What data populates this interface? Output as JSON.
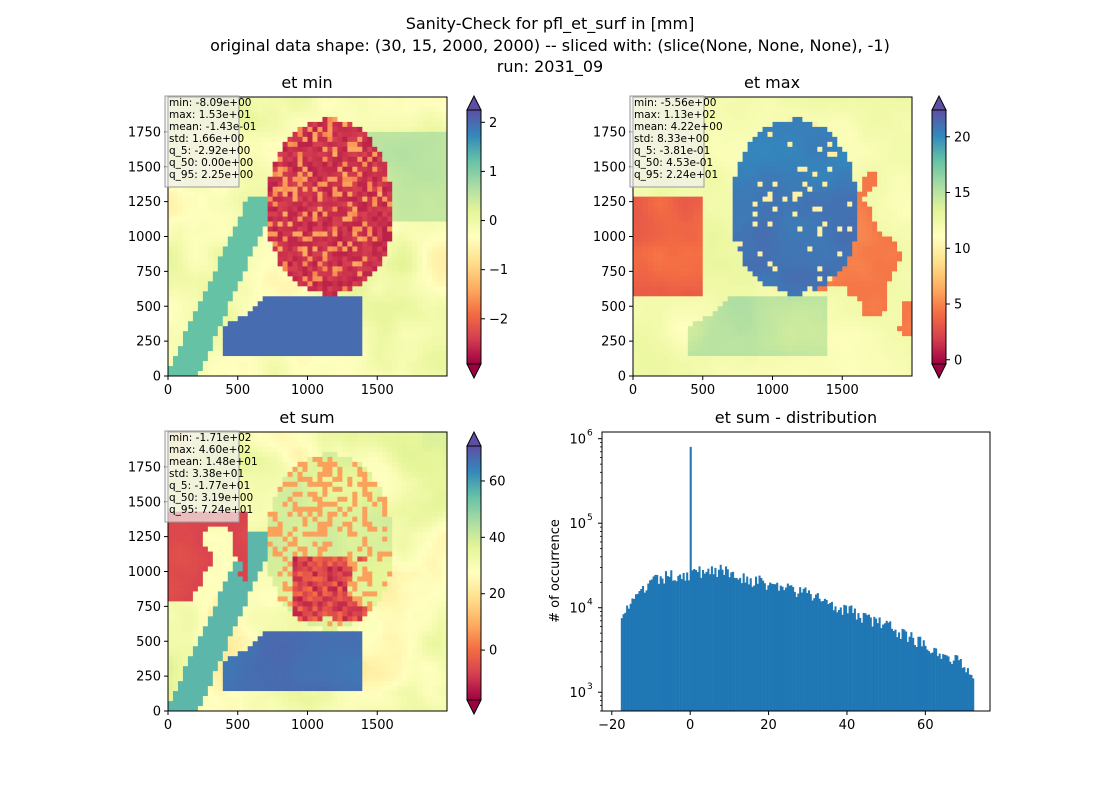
{
  "figure": {
    "title_lines": [
      "Sanity-Check for pfl_et_surf in [mm]",
      "original data shape: (30, 15, 2000, 2000) -- sliced with: (slice(None, None, None), -1)",
      "run: 2031_09"
    ]
  },
  "panels": [
    {
      "id": "et_min",
      "title": "et min",
      "x_ticks": [
        "0",
        "500",
        "1000",
        "1500"
      ],
      "y_ticks": [
        "0",
        "250",
        "500",
        "750",
        "1000",
        "1250",
        "1500",
        "1750"
      ],
      "stats": [
        "min: -8.09e+00",
        "max: 1.53e+01",
        "mean: -1.43e-01",
        "std: 1.66e+00",
        "q_5: -2.92e+00",
        "q_50: 0.00e+00",
        "q_95: 2.25e+00"
      ],
      "colorbar": {
        "ticks": [
          {
            "value": 2,
            "label": "2"
          },
          {
            "value": 1,
            "label": "1"
          },
          {
            "value": 0,
            "label": "0"
          },
          {
            "value": -1,
            "label": "−1"
          },
          {
            "value": -2,
            "label": "−2"
          }
        ],
        "range": [
          -2.92,
          2.25
        ]
      }
    },
    {
      "id": "et_max",
      "title": "et max",
      "x_ticks": [
        "0",
        "500",
        "1000",
        "1500"
      ],
      "y_ticks": [
        "0",
        "250",
        "500",
        "750",
        "1000",
        "1250",
        "1500",
        "1750"
      ],
      "stats": [
        "min: -5.56e+00",
        "max: 1.13e+02",
        "mean: 4.22e+00",
        "std: 8.33e+00",
        "q_5: -3.81e-01",
        "q_50: 4.53e-01",
        "q_95: 2.24e+01"
      ],
      "colorbar": {
        "ticks": [
          {
            "value": 20,
            "label": "20"
          },
          {
            "value": 15,
            "label": "15"
          },
          {
            "value": 10,
            "label": "10"
          },
          {
            "value": 5,
            "label": "5"
          },
          {
            "value": 0,
            "label": "0"
          }
        ],
        "range": [
          -0.381,
          22.4
        ]
      }
    },
    {
      "id": "et_sum",
      "title": "et sum",
      "x_ticks": [
        "0",
        "500",
        "1000",
        "1500"
      ],
      "y_ticks": [
        "0",
        "250",
        "500",
        "750",
        "1000",
        "1250",
        "1500",
        "1750"
      ],
      "stats": [
        "min: -1.71e+02",
        "max: 4.60e+02",
        "mean: 1.48e+01",
        "std: 3.38e+01",
        "q_5: -1.77e+01",
        "q_50: 3.19e+00",
        "q_95: 7.24e+01"
      ],
      "colorbar": {
        "ticks": [
          {
            "value": 60,
            "label": "60"
          },
          {
            "value": 40,
            "label": "40"
          },
          {
            "value": 20,
            "label": "20"
          },
          {
            "value": 0,
            "label": "0"
          }
        ],
        "range": [
          -17.7,
          72.4
        ]
      }
    }
  ],
  "colors": {
    "cmap": [
      "#9e0142",
      "#d53e4f",
      "#f46d43",
      "#fdae61",
      "#fee08b",
      "#ffffbf",
      "#e6f598",
      "#abdda4",
      "#66c2a5",
      "#3288bd",
      "#5e4fa2"
    ],
    "land_low": "#f8f6b4",
    "hist_bar": "#1f77b4"
  },
  "chart_data": {
    "type": "bar",
    "title": "et sum - distribution",
    "xlabel": "",
    "ylabel": "# of occurrence",
    "yscale": "log",
    "xlim": [
      -22.5,
      76.5
    ],
    "ylim": [
      600,
      1200000
    ],
    "x_ticks": [
      {
        "value": -20,
        "label": "−20"
      },
      {
        "value": 0,
        "label": "0"
      },
      {
        "value": 20,
        "label": "20"
      },
      {
        "value": 40,
        "label": "40"
      },
      {
        "value": 60,
        "label": "60"
      }
    ],
    "y_ticks": [
      {
        "value": 1000,
        "label": "10",
        "exp": "3"
      },
      {
        "value": 10000,
        "label": "10",
        "exp": "4"
      },
      {
        "value": 100000,
        "label": "10",
        "exp": "5"
      },
      {
        "value": 1000000,
        "label": "10",
        "exp": "6"
      }
    ],
    "bin_range": [
      -17.7,
      72.4
    ],
    "spike": {
      "x": 0,
      "count": 800000
    },
    "profile": [
      {
        "x": -17.7,
        "count": 9000
      },
      {
        "x": -15,
        "count": 11000
      },
      {
        "x": -12,
        "count": 16000
      },
      {
        "x": -10,
        "count": 20000
      },
      {
        "x": -5,
        "count": 24000
      },
      {
        "x": 0,
        "count": 25000
      },
      {
        "x": 3,
        "count": 27000
      },
      {
        "x": 5,
        "count": 29000
      },
      {
        "x": 10,
        "count": 26000
      },
      {
        "x": 15,
        "count": 22000
      },
      {
        "x": 20,
        "count": 19000
      },
      {
        "x": 25,
        "count": 17000
      },
      {
        "x": 30,
        "count": 14500
      },
      {
        "x": 35,
        "count": 12000
      },
      {
        "x": 40,
        "count": 9500
      },
      {
        "x": 45,
        "count": 7500
      },
      {
        "x": 50,
        "count": 6200
      },
      {
        "x": 55,
        "count": 4800
      },
      {
        "x": 60,
        "count": 3700
      },
      {
        "x": 65,
        "count": 2800
      },
      {
        "x": 70,
        "count": 2100
      },
      {
        "x": 72.4,
        "count": 1700
      }
    ]
  }
}
